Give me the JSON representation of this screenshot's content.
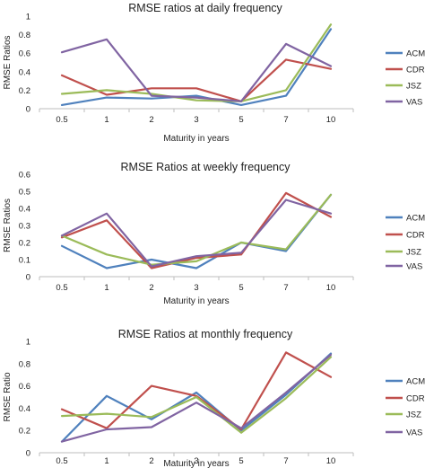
{
  "chart_data": [
    {
      "type": "line",
      "title": "RMSE ratios at daily frequency",
      "xlabel": "Maturity in years",
      "ylabel": "RMSE Ratios",
      "categories": [
        "0.5",
        "1",
        "2",
        "3",
        "5",
        "7",
        "10"
      ],
      "ylim": [
        0,
        1
      ],
      "yticks": [
        "0",
        "0.2",
        "0.4",
        "0.6",
        "0.8",
        "1"
      ],
      "grid": false,
      "legend_position": "right",
      "series": [
        {
          "name": "ACM",
          "color": "#4f81bd",
          "values": [
            0.04,
            0.12,
            0.11,
            0.14,
            0.04,
            0.14,
            0.86
          ]
        },
        {
          "name": "CDR",
          "color": "#c0504d",
          "values": [
            0.36,
            0.15,
            0.22,
            0.22,
            0.08,
            0.53,
            0.43
          ]
        },
        {
          "name": "JSZ",
          "color": "#9bbb59",
          "values": [
            0.16,
            0.2,
            0.16,
            0.09,
            0.08,
            0.2,
            0.91
          ]
        },
        {
          "name": "VAS",
          "color": "#8064a2",
          "values": [
            0.61,
            0.75,
            0.14,
            0.12,
            0.08,
            0.7,
            0.46
          ]
        }
      ]
    },
    {
      "type": "line",
      "title": "RMSE Ratios at weekly frequency",
      "xlabel": "Maturity in years",
      "ylabel": "RMSE Ratios",
      "categories": [
        "0.5",
        "1",
        "2",
        "3",
        "5",
        "7",
        "10"
      ],
      "ylim": [
        0,
        0.6
      ],
      "yticks": [
        "0",
        "0.1",
        "0.2",
        "0.3",
        "0.4",
        "0.5",
        "0.6"
      ],
      "grid": false,
      "legend_position": "right",
      "series": [
        {
          "name": "ACM",
          "color": "#4f81bd",
          "values": [
            0.18,
            0.05,
            0.1,
            0.05,
            0.2,
            0.15,
            0.48
          ]
        },
        {
          "name": "CDR",
          "color": "#c0504d",
          "values": [
            0.23,
            0.33,
            0.05,
            0.11,
            0.13,
            0.49,
            0.35
          ]
        },
        {
          "name": "JSZ",
          "color": "#9bbb59",
          "values": [
            0.24,
            0.13,
            0.07,
            0.09,
            0.2,
            0.16,
            0.48
          ]
        },
        {
          "name": "VAS",
          "color": "#8064a2",
          "values": [
            0.24,
            0.37,
            0.06,
            0.12,
            0.14,
            0.45,
            0.37
          ]
        }
      ]
    },
    {
      "type": "line",
      "title": "RMSE Ratios at monthly frequency",
      "xlabel": "Maturity in years",
      "ylabel": "RMSE Ratio",
      "categories": [
        "0.5",
        "1",
        "2",
        "3",
        "5",
        "7",
        "10"
      ],
      "ylim": [
        0,
        1
      ],
      "yticks": [
        "0",
        "0.1",
        "0.2",
        "0.3",
        "0.4",
        "0.5",
        "0.6",
        "0.7",
        "0.8",
        "0.9",
        "1"
      ],
      "ytick_labels_shown": [
        "0",
        "0.2",
        "0.4",
        "0.6",
        "0.8",
        "1"
      ],
      "grid": false,
      "legend_position": "right",
      "series": [
        {
          "name": "ACM",
          "color": "#4f81bd",
          "values": [
            0.1,
            0.51,
            0.3,
            0.54,
            0.2,
            0.52,
            0.89
          ]
        },
        {
          "name": "CDR",
          "color": "#c0504d",
          "values": [
            0.39,
            0.22,
            0.6,
            0.51,
            0.21,
            0.9,
            0.68
          ]
        },
        {
          "name": "JSZ",
          "color": "#9bbb59",
          "values": [
            0.33,
            0.35,
            0.32,
            0.5,
            0.18,
            0.49,
            0.86
          ]
        },
        {
          "name": "VAS",
          "color": "#8064a2",
          "values": [
            0.1,
            0.21,
            0.23,
            0.45,
            0.22,
            0.54,
            0.88
          ]
        }
      ]
    }
  ]
}
